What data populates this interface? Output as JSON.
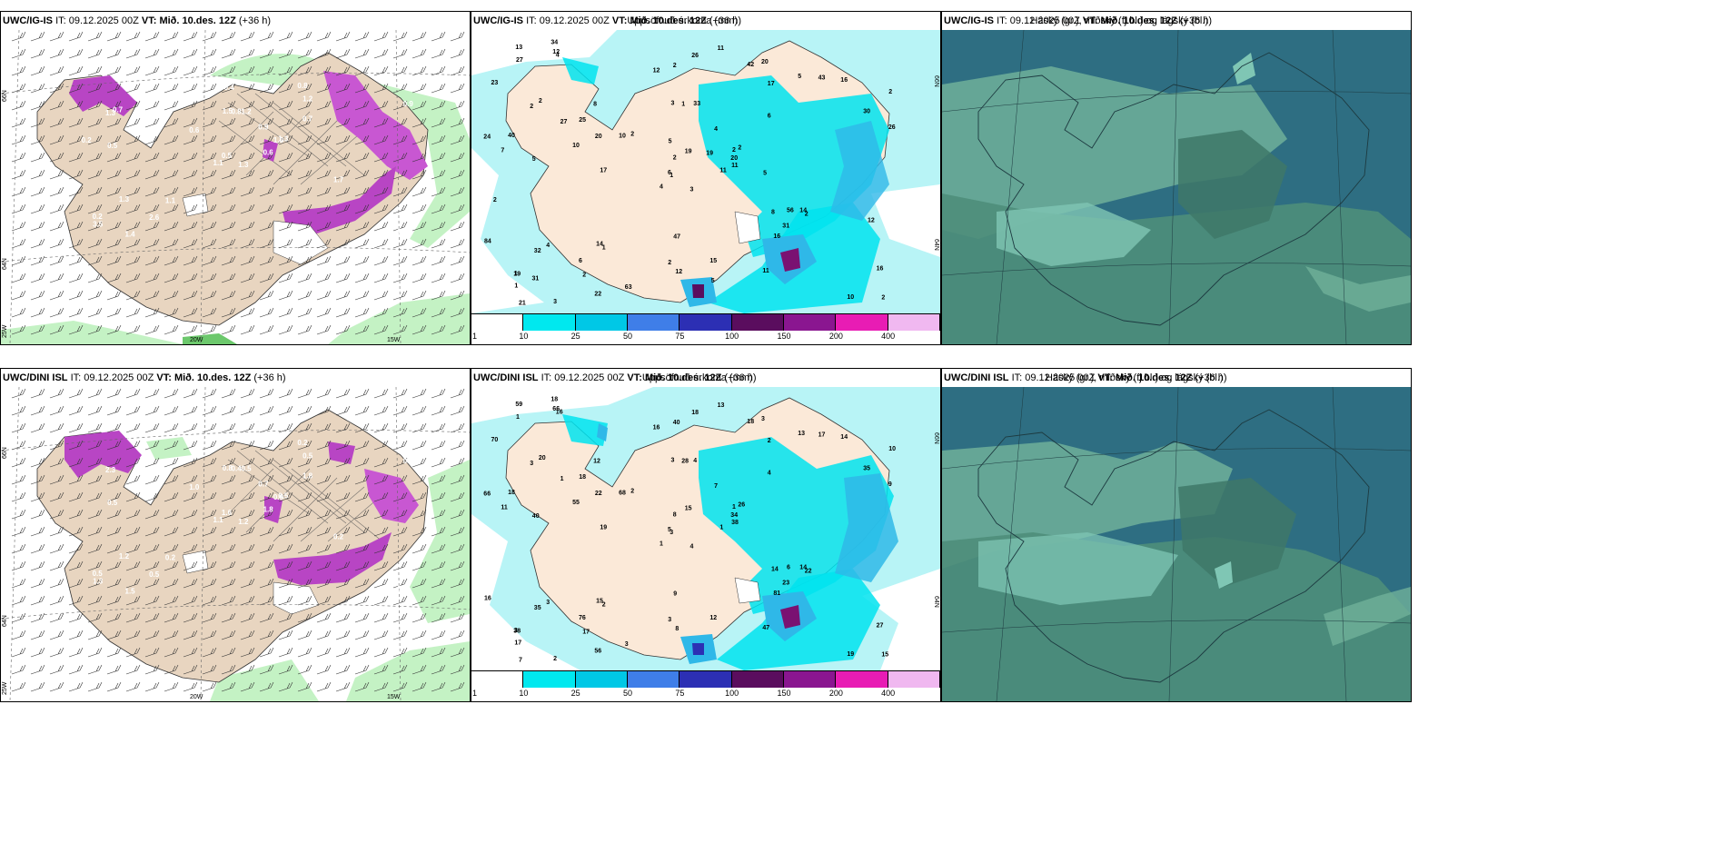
{
  "panels": [
    {
      "id": "tl",
      "model": "UWC/IG-IS",
      "it_label": "IT:",
      "it": "09.12.2025 00Z",
      "vt_label": "VT:",
      "vt": "Mið. 10.des. 12Z",
      "lead": "(+36 h)",
      "right": ""
    },
    {
      "id": "tm",
      "model": "UWC/IG-IS",
      "it_label": "IT:",
      "it": "09.12.2025 00Z",
      "vt_label": "VT:",
      "vt": "Mið. 10.des. 12Z",
      "lead": "(+36 h)",
      "right": "Uppsöfnuð úrkoma (mm)"
    },
    {
      "id": "tr",
      "model": "UWC/IG-IS",
      "it_label": "IT:",
      "it": "09.12.2025 00Z",
      "vt_label": "VT:",
      "vt": "Mið. 10.des. 12Z",
      "lead": "(+36 h)",
      "right": "Háský (gr.), miðský (fj.bl.) og lágský (bl.)"
    },
    {
      "id": "bl",
      "model": "UWC/DINI ISL",
      "it_label": "IT:",
      "it": "09.12.2025 00Z",
      "vt_label": "VT:",
      "vt": "Mið. 10.des. 12Z",
      "lead": "(+36 h)",
      "right": ""
    },
    {
      "id": "bm",
      "model": "UWC/DINI ISL",
      "it_label": "IT:",
      "it": "09.12.2025 00Z",
      "vt_label": "VT:",
      "vt": "Mið. 10.des. 12Z",
      "lead": "(+36 h)",
      "right": "Uppsöfnuð úrkoma (mm)"
    },
    {
      "id": "br",
      "model": "UWC/DINI ISL",
      "it_label": "IT:",
      "it": "09.12.2025 00Z",
      "vt_label": "VT:",
      "vt": "Mið. 10.des. 12Z",
      "lead": "(+36 h)",
      "right": "Háský (gr.), miðský (fj.bl.) og lágský (bl.)"
    }
  ],
  "legend": {
    "ticks": [
      "1",
      "10",
      "25",
      "50",
      "75",
      "100",
      "150",
      "200",
      "400"
    ],
    "colors": [
      "#ffffff",
      "#00e8ef",
      "#00c8e6",
      "#3f7ee8",
      "#2c2fb4",
      "#5a0d5e",
      "#8a1690",
      "#e81cb4",
      "#f0b8f0"
    ]
  },
  "map_colors": {
    "land": "#e8d5c0",
    "land_light": "#fbe9d8",
    "green": "#c4f2c4",
    "green2": "#9ee39e",
    "purple": "#b845c4",
    "purple_hi": "#e46ce8",
    "precip_light": "#b8f4f6",
    "precip_mid": "#00e3ee",
    "precip_blue": "#2fb8e8",
    "precip_dark": "#7a1272",
    "cloud_bg": "#2e6e82",
    "cloud_high": "#4e8e7a",
    "cloud_mid": "#6fb09a",
    "cloud_light": "#7fc6b4"
  },
  "lat_lon_labels": {
    "left": [
      {
        "text": "66N"
      },
      {
        "text": "64N"
      },
      {
        "text": "25W"
      }
    ],
    "bottom": [
      {
        "text": "20W"
      },
      {
        "text": "15W"
      }
    ],
    "right": [
      {
        "text": "66N"
      },
      {
        "text": "64N"
      }
    ]
  },
  "precip_numbers_top": [
    "3",
    "2",
    "1",
    "1",
    "2",
    "1",
    "20",
    "33",
    "17",
    "11",
    "4",
    "2",
    "5",
    "2",
    "4",
    "6",
    "3",
    "3",
    "4",
    "4",
    "2",
    "1",
    "2",
    "1",
    "2",
    "2",
    "2",
    "2",
    "7",
    "8",
    "26",
    "6",
    "2",
    "2",
    "8",
    "5",
    "14",
    "10",
    "16",
    "14",
    "11",
    "10",
    "10",
    "16",
    "22",
    "24",
    "20",
    "21",
    "12",
    "11",
    "32",
    "30",
    "23",
    "31",
    "11",
    "6",
    "12",
    "13",
    "15",
    "16",
    "26",
    "17",
    "40",
    "25",
    "43",
    "34",
    "42",
    "12",
    "19",
    "84",
    "47",
    "63",
    "56",
    "20",
    "19",
    "27",
    "27",
    "2",
    "5",
    "5",
    "19",
    "31",
    "5",
    "12"
  ],
  "precip_numbers_bottom": [
    "4",
    "3",
    "3",
    "3",
    "1",
    "2",
    "3",
    "4",
    "2",
    "1",
    "16",
    "15",
    "40",
    "10",
    "1",
    "4",
    "2",
    "3",
    "7",
    "3",
    "2",
    "17",
    "17",
    "28",
    "26",
    "22",
    "20",
    "40",
    "11",
    "14",
    "9",
    "5",
    "3",
    "8",
    "12",
    "13",
    "15",
    "19",
    "27",
    "14",
    "13",
    "68",
    "55",
    "81",
    "56",
    "66",
    "34",
    "7",
    "8",
    "38",
    "35",
    "35",
    "70",
    "23",
    "47",
    "76",
    "66",
    "59",
    "12",
    "14",
    "18",
    "19",
    "18",
    "18",
    "17",
    "18",
    "18",
    "16",
    "15",
    "16",
    "9",
    "3",
    "6",
    "22",
    "38",
    "1",
    "1"
  ],
  "contour_labels_left_top": [
    "1.3",
    "1.3",
    "0.5",
    "0.2",
    "1.0",
    "1.1",
    "0.8",
    "1.2",
    "1.2",
    "0.6",
    "0.2",
    "1.6",
    "0.5",
    "0.9",
    "1.1",
    "0.7",
    "1.4",
    "1.5",
    "0.9",
    "1.3",
    "0.6",
    "3.5",
    "2.6",
    "0.8",
    "1.3",
    "1.7",
    "0.7",
    "0.4",
    "0.2"
  ],
  "contour_labels_left_bottom": [
    "1.2",
    "2.3",
    "1.6",
    "0.5",
    "0.9",
    "0.2",
    "0.2",
    "0.5",
    "0.5",
    "1.8",
    "0.9",
    "0.6",
    "0.5",
    "0.54",
    "1.1",
    "1.8",
    "1.5",
    "0.8",
    "0.7",
    "1.2",
    "1.0",
    "1.3",
    "0.5",
    "0.4",
    "0.5",
    "0.2"
  ]
}
